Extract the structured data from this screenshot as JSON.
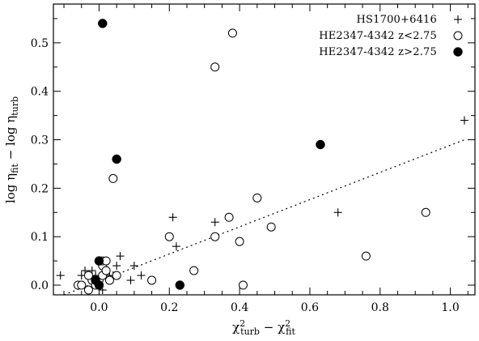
{
  "chart_data": {
    "type": "scatter",
    "title": "",
    "xlabel": "χ²turb − χ²fit",
    "ylabel": "log ηfit − log ηturb",
    "xlabel_parts": {
      "sym": "χ",
      "sup1": "2",
      "sub1": "turb",
      "minus": " − ",
      "sup2": "2",
      "sub2": "fit"
    },
    "ylabel_parts": {
      "pre1": "log ",
      "sym1": "η",
      "sub1": "fit",
      "mid": " − log ",
      "sym2": "η",
      "sub2": "turb"
    },
    "xlim": [
      -0.13,
      1.07
    ],
    "ylim": [
      -0.02,
      0.58
    ],
    "x_ticks": [
      0,
      0.2,
      0.4,
      0.6,
      0.8,
      1
    ],
    "x_tick_labels": [
      "0.0",
      "0.2",
      "0.4",
      "0.6",
      "0.8",
      "1.0"
    ],
    "y_ticks": [
      0,
      0.1,
      0.2,
      0.3,
      0.4,
      0.5
    ],
    "y_tick_labels": [
      "0.0",
      "0.1",
      "0.2",
      "0.3",
      "0.4",
      "0.5"
    ],
    "grid": false,
    "legend_position": "top-right",
    "trend_line": {
      "style": "dotted",
      "x": [
        -0.1,
        1.04
      ],
      "y": [
        -0.02,
        0.3
      ]
    },
    "series": [
      {
        "name": "HS1700+6416",
        "marker": "plus",
        "points": [
          [
            -0.11,
            0.02
          ],
          [
            -0.05,
            0.02
          ],
          [
            -0.04,
            0.03
          ],
          [
            -0.03,
            0.02
          ],
          [
            -0.02,
            0.03
          ],
          [
            -0.02,
            0.01
          ],
          [
            -0.01,
            0.02
          ],
          [
            0.0,
            0.01
          ],
          [
            0.01,
            0.02
          ],
          [
            0.02,
            0.03
          ],
          [
            0.03,
            0.02
          ],
          [
            0.05,
            0.04
          ],
          [
            0.06,
            0.06
          ],
          [
            0.04,
            0.02
          ],
          [
            0.09,
            0.01
          ],
          [
            0.1,
            0.04
          ],
          [
            0.12,
            0.02
          ],
          [
            0.21,
            0.14
          ],
          [
            0.22,
            0.08
          ],
          [
            0.33,
            0.13
          ],
          [
            0.68,
            0.15
          ],
          [
            1.04,
            0.34
          ],
          [
            0.0,
            0.0
          ],
          [
            0.01,
            -0.01
          ],
          [
            0.03,
            0.01
          ]
        ]
      },
      {
        "name": "HE2347-4342 z<2.75",
        "marker": "open-circle",
        "points": [
          [
            -0.06,
            0.0
          ],
          [
            -0.05,
            0.0
          ],
          [
            -0.03,
            -0.01
          ],
          [
            -0.02,
            0.01
          ],
          [
            -0.03,
            0.02
          ],
          [
            -0.01,
            0.0
          ],
          [
            0.0,
            0.01
          ],
          [
            0.01,
            0.02
          ],
          [
            0.01,
            0.04
          ],
          [
            0.02,
            0.03
          ],
          [
            0.01,
            0.05
          ],
          [
            0.02,
            0.05
          ],
          [
            0.03,
            0.01
          ],
          [
            0.05,
            0.02
          ],
          [
            0.15,
            0.01
          ],
          [
            0.2,
            0.1
          ],
          [
            0.27,
            0.03
          ],
          [
            0.33,
            0.1
          ],
          [
            0.37,
            0.14
          ],
          [
            0.4,
            0.09
          ],
          [
            0.45,
            0.18
          ],
          [
            0.49,
            0.12
          ],
          [
            0.41,
            0.0
          ],
          [
            0.76,
            0.06
          ],
          [
            0.93,
            0.15
          ],
          [
            0.04,
            0.22
          ],
          [
            0.33,
            0.45
          ],
          [
            0.38,
            0.52
          ]
        ]
      },
      {
        "name": "HE2347-4342 z>2.75",
        "marker": "filled-circle",
        "points": [
          [
            0.01,
            0.54
          ],
          [
            0.05,
            0.26
          ],
          [
            0.63,
            0.29
          ],
          [
            0.0,
            0.05
          ],
          [
            -0.01,
            0.01
          ],
          [
            0.0,
            0.0
          ],
          [
            0.23,
            0.0
          ]
        ]
      }
    ]
  }
}
